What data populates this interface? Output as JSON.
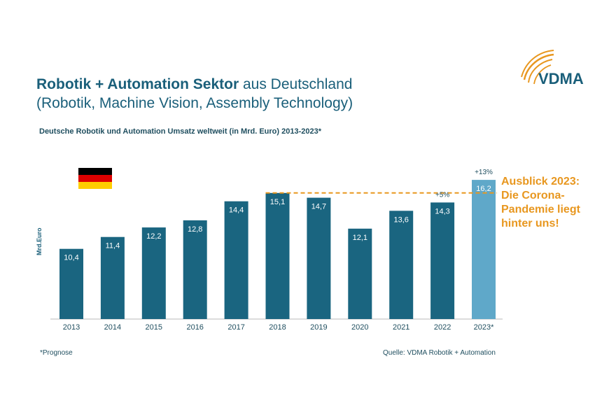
{
  "header": {
    "title_bold": "Robotik + Automation Sektor",
    "title_rest": " aus Deutschland",
    "title_line2": "(Robotik, Machine Vision, Assembly Technology)"
  },
  "logo": {
    "text": "VDMA",
    "icon": "vdma-logo-icon"
  },
  "colors": {
    "bar": "#1a6580",
    "forecast_bar": "#5fa8c9",
    "accent": "#e8971f",
    "title": "#1a5f7a"
  },
  "chart_data": {
    "type": "bar",
    "title": "Deutsche Robotik und Automation Umsatz weltweit (in Mrd. Euro) 2013-2023*",
    "xlabel": "",
    "ylabel": "Mrd.Euro",
    "categories": [
      "2013",
      "2014",
      "2015",
      "2016",
      "2017",
      "2018",
      "2019",
      "2020",
      "2021",
      "2022",
      "2023*"
    ],
    "values": [
      10.4,
      11.4,
      12.2,
      12.8,
      14.4,
      15.1,
      14.7,
      12.1,
      13.6,
      14.3,
      16.2
    ],
    "value_labels": [
      "10,4",
      "11,4",
      "12,2",
      "12,8",
      "14,4",
      "15,1",
      "14,7",
      "12,1",
      "13,6",
      "14,3",
      "16,2"
    ],
    "forecast_index": 10,
    "ylim": [
      4.5,
      16.5
    ],
    "growth_labels": [
      {
        "category": "2022",
        "text": "+5%"
      },
      {
        "category": "2023*",
        "text": "+13%"
      }
    ],
    "reference_line": {
      "value": 15.1,
      "from": "2018",
      "to": "2023*",
      "style": "dashed"
    },
    "grid": false,
    "legend": "none"
  },
  "flag_icon": "germany-flag-icon",
  "outlook": [
    "Ausblick 2023:",
    "Die Corona-",
    "Pandemie liegt",
    "hinter uns!"
  ],
  "footnote": "*Prognose",
  "source": "Quelle: VDMA Robotik + Automation"
}
